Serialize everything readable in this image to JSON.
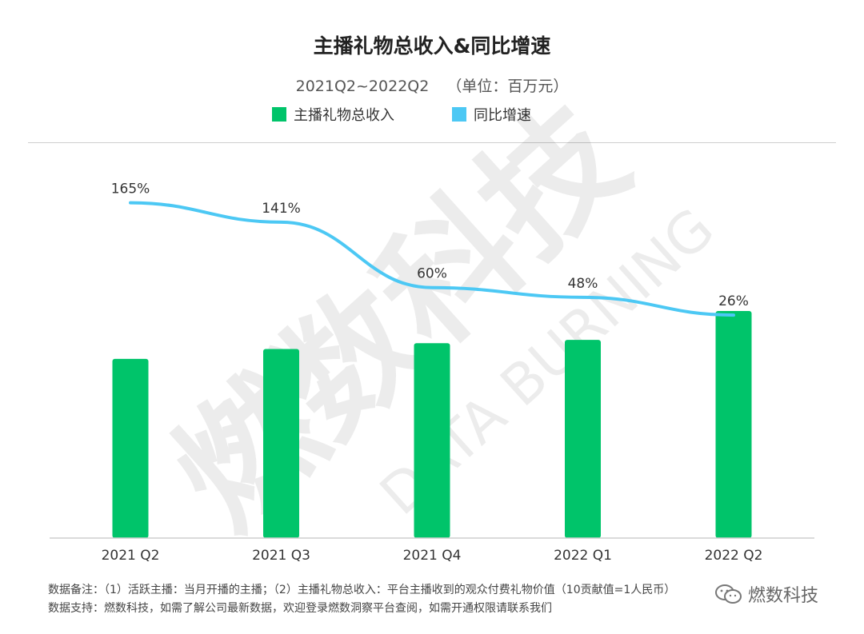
{
  "header": {
    "title": "主播礼物总收入&同比增速",
    "subtitle_range": "2021Q2~2022Q2",
    "subtitle_unit": "（单位：百万元）"
  },
  "legend": {
    "bars_label": "主播礼物总收入",
    "line_label": "同比增速"
  },
  "watermark": {
    "cn": "燃数科技",
    "en": "DATA BURNING"
  },
  "chart_data": {
    "type": "bar+line",
    "categories": [
      "2021 Q2",
      "2021 Q3",
      "2021 Q4",
      "2022 Q1",
      "2022 Q2"
    ],
    "series": [
      {
        "name": "主播礼物总收入",
        "type": "bar",
        "values": [
          217,
          229,
          236,
          240,
          275
        ],
        "color": "#00c46a"
      },
      {
        "name": "同比增速",
        "type": "line",
        "values": [
          165,
          141,
          60,
          48,
          26
        ],
        "labels": [
          "165%",
          "141%",
          "60%",
          "48%",
          "26%"
        ],
        "color": "#4cc8f4"
      }
    ],
    "bar_axis_range": [
      0,
      460
    ],
    "line_axis_range": [
      -250,
      220
    ],
    "title": "主播礼物总收入&同比增速"
  },
  "footer": {
    "note_line1": "数据备注：（1）活跃主播：当月开播的主播；（2）主播礼物总收入：平台主播收到的观众付费礼物价值（10贡献值=1人民币）",
    "note_line2": "数据支持：燃数科技，如需了解公司最新数据，欢迎登录燃数洞察平台查阅，如需开通权限请联系我们",
    "brand": "燃数科技"
  }
}
